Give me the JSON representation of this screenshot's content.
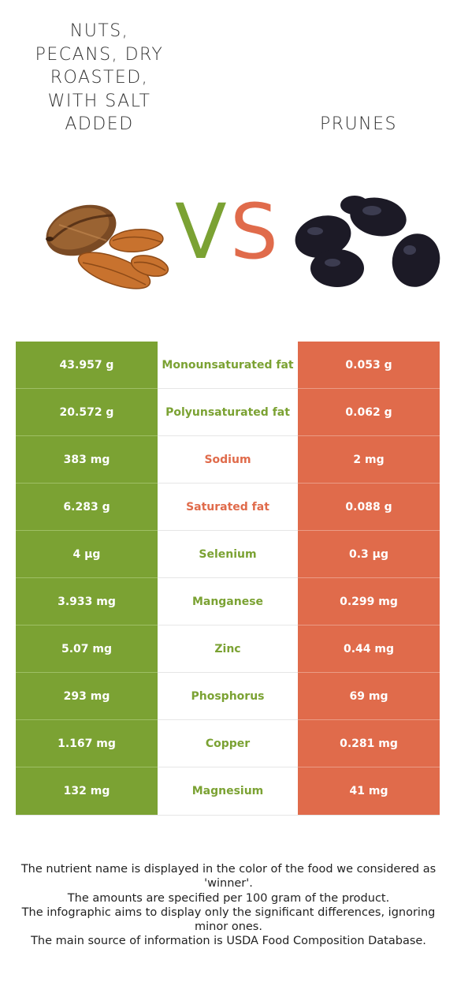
{
  "food_left": {
    "name": "NUTS, PECANS, DRY ROASTED, WITH SALT ADDED",
    "lines": [
      "NUTS,",
      "PECANS, DRY",
      "ROASTED,",
      "WITH SALT",
      "ADDED"
    ]
  },
  "food_right": {
    "name": "PRUNES"
  },
  "vs": {
    "v": "V",
    "s": "S"
  },
  "colors": {
    "left": "#7ba233",
    "right": "#e06b4b"
  },
  "rows": [
    {
      "nutrient": "Monounsaturated fat",
      "left": "43.957 g",
      "right": "0.053 g",
      "winner": "left"
    },
    {
      "nutrient": "Polyunsaturated fat",
      "left": "20.572 g",
      "right": "0.062 g",
      "winner": "left"
    },
    {
      "nutrient": "Sodium",
      "left": "383 mg",
      "right": "2 mg",
      "winner": "right"
    },
    {
      "nutrient": "Saturated fat",
      "left": "6.283 g",
      "right": "0.088 g",
      "winner": "right"
    },
    {
      "nutrient": "Selenium",
      "left": "4 µg",
      "right": "0.3 µg",
      "winner": "left"
    },
    {
      "nutrient": "Manganese",
      "left": "3.933 mg",
      "right": "0.299 mg",
      "winner": "left"
    },
    {
      "nutrient": "Zinc",
      "left": "5.07 mg",
      "right": "0.44 mg",
      "winner": "left"
    },
    {
      "nutrient": "Phosphorus",
      "left": "293 mg",
      "right": "69 mg",
      "winner": "left"
    },
    {
      "nutrient": "Copper",
      "left": "1.167 mg",
      "right": "0.281 mg",
      "winner": "left"
    },
    {
      "nutrient": "Magnesium",
      "left": "132 mg",
      "right": "41 mg",
      "winner": "left"
    }
  ],
  "footnote": [
    "The nutrient name is displayed in the color of the food we considered as 'winner'.",
    "The amounts are specified per 100 gram of the product.",
    "The infographic aims to display only the significant differences, ignoring minor ones.",
    "The main source of information is USDA Food Composition Database."
  ]
}
